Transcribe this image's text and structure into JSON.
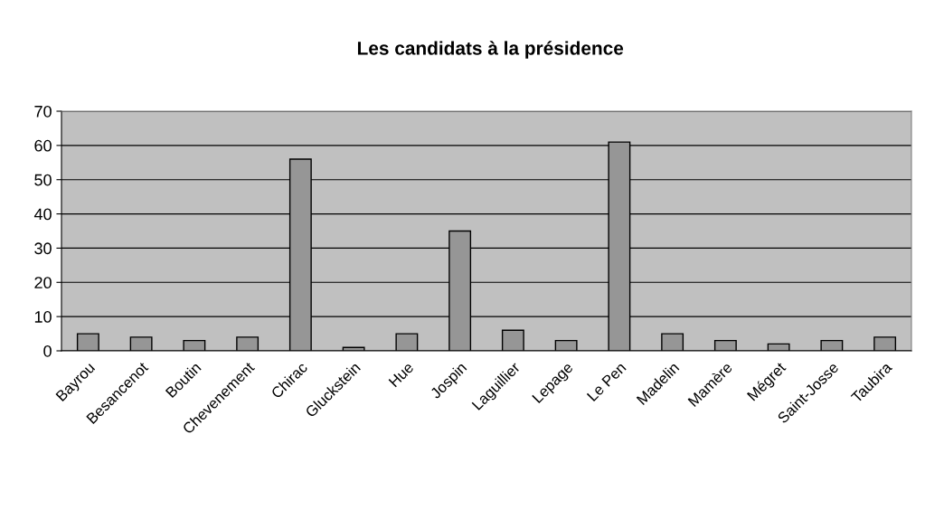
{
  "chart_data": {
    "type": "bar",
    "title": "Les candidats à la présidence",
    "categories": [
      "Bayrou",
      "Besancenot",
      "Boutin",
      "Chevenement",
      "Chirac",
      "Gluckstein",
      "Hue",
      "Jospin",
      "Laguillier",
      "Lepage",
      "Le Pen",
      "Madelin",
      "Mamère",
      "Mégret",
      "Saint-Josse",
      "Taubira"
    ],
    "values": [
      5,
      4,
      3,
      4,
      56,
      1,
      5,
      35,
      6,
      3,
      61,
      5,
      3,
      2,
      3,
      4
    ],
    "color": "#969696",
    "ylim": [
      0,
      70
    ],
    "yticks": [
      0,
      10,
      20,
      30,
      40,
      50,
      60,
      70
    ],
    "grid": "y"
  }
}
